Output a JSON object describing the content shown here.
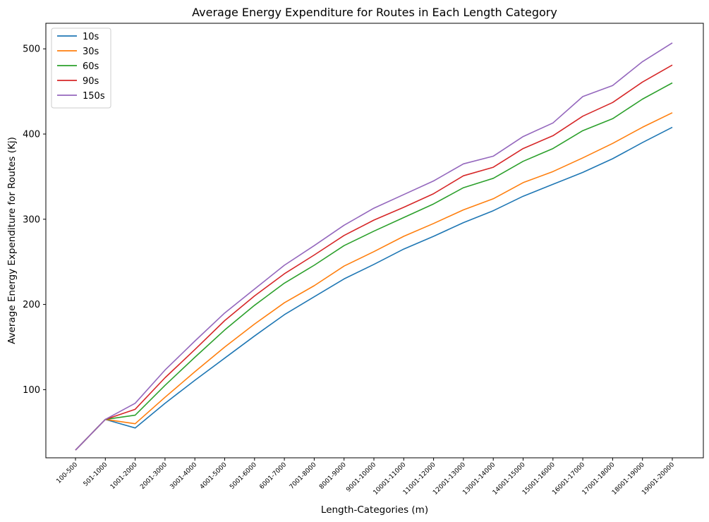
{
  "chart_data": {
    "type": "line",
    "title": "Average Energy Expenditure for Routes in Each Length Category",
    "xlabel": "Length-Categories (m)",
    "ylabel": "Average Energy Expenditure for Routes (Kj)",
    "ylim": [
      20,
      530
    ],
    "yticks": [
      100,
      200,
      300,
      400,
      500
    ],
    "grid": false,
    "legend_position": "upper-left",
    "categories": [
      "100-500",
      "501-1000",
      "1001-2000",
      "2001-3000",
      "3001-4000",
      "4001-5000",
      "5001-6000",
      "6001-7000",
      "7001-8000",
      "8001-9000",
      "9001-10000",
      "10001-11000",
      "11001-12000",
      "12001-13000",
      "13001-14000",
      "14001-15000",
      "15001-16000",
      "16001-17000",
      "17001-18000",
      "18001-19000",
      "19001-20000"
    ],
    "series": [
      {
        "name": "10s",
        "color": "#1f77b4",
        "values": [
          29,
          65,
          55,
          84,
          111,
          137,
          163,
          188,
          209,
          230,
          247,
          265,
          280,
          296,
          310,
          327,
          341,
          355,
          371,
          390,
          408
        ]
      },
      {
        "name": "30s",
        "color": "#ff7f0e",
        "values": [
          29,
          65,
          60,
          91,
          121,
          150,
          177,
          202,
          222,
          245,
          262,
          280,
          295,
          311,
          324,
          343,
          356,
          372,
          389,
          408,
          425
        ]
      },
      {
        "name": "60s",
        "color": "#2ca02c",
        "values": [
          29,
          65,
          70,
          105,
          138,
          170,
          199,
          225,
          246,
          269,
          286,
          302,
          318,
          337,
          348,
          368,
          383,
          404,
          418,
          441,
          460
        ]
      },
      {
        "name": "90s",
        "color": "#d62728",
        "values": [
          29,
          65,
          77,
          114,
          147,
          181,
          210,
          236,
          258,
          281,
          299,
          314,
          330,
          351,
          361,
          383,
          398,
          421,
          437,
          461,
          481
        ]
      },
      {
        "name": "150s",
        "color": "#9467bd",
        "values": [
          29,
          65,
          84,
          123,
          157,
          190,
          218,
          246,
          269,
          293,
          313,
          329,
          345,
          365,
          374,
          397,
          413,
          444,
          457,
          485,
          507
        ]
      }
    ]
  }
}
